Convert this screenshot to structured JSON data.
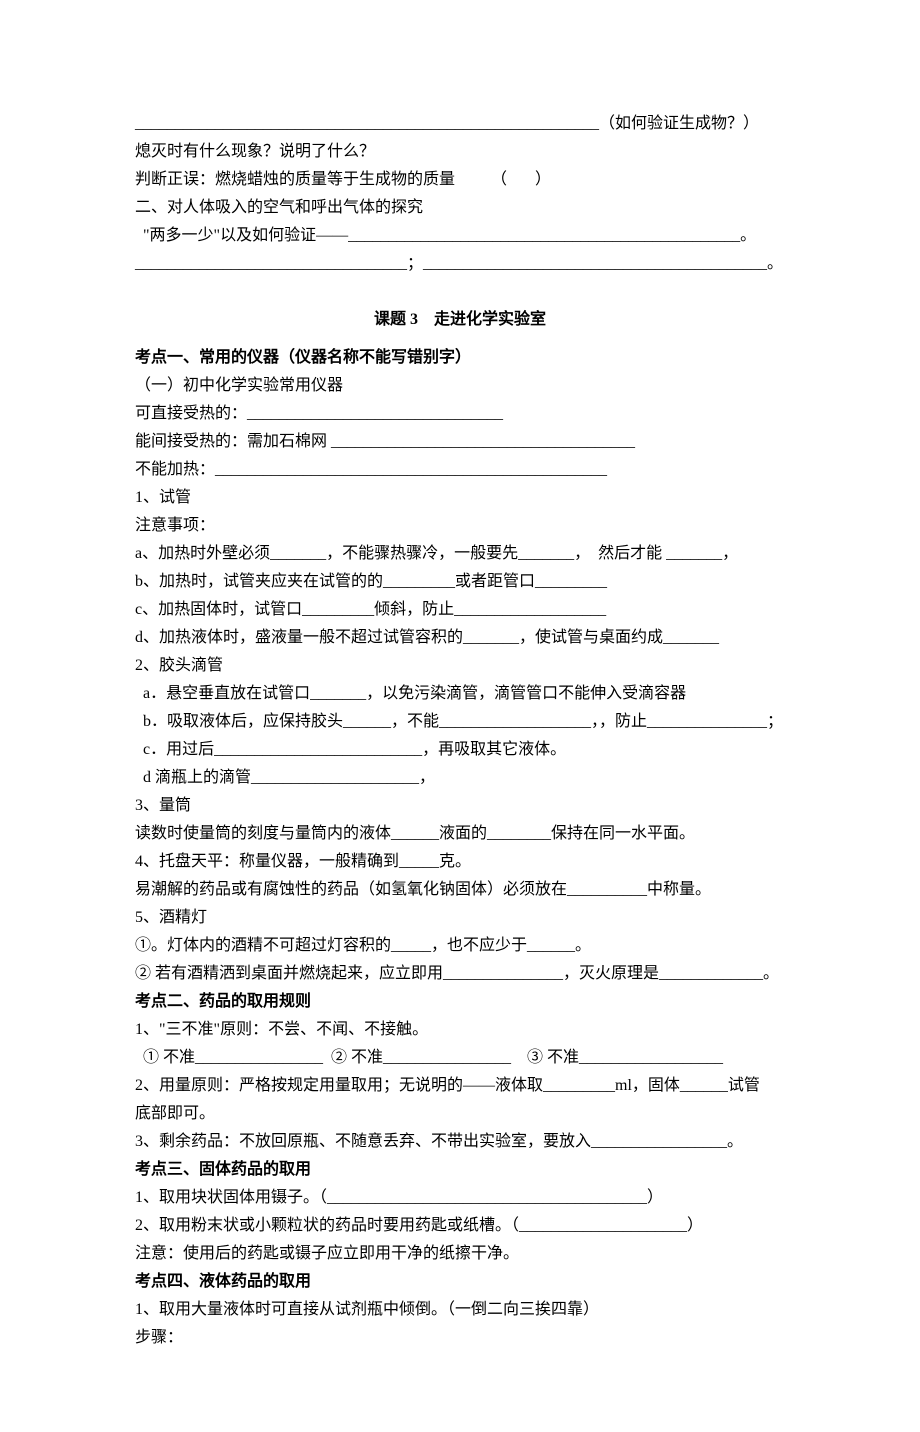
{
  "top": {
    "blank_tail": "__________________________________________________________（如何验证生成物？）",
    "q_extinguish": "熄灭时有什么现象？说明了什么？",
    "q_judge": "判断正误：燃烧蜡烛的质量等于生成物的质量         （       ）",
    "sec2_title": "二、对人体吸入的空气和呼出气体的探究",
    "two_more": "  \"两多一少\"以及如何验证——_________________________________________________。",
    "blank_pair": "__________________________________；___________________________________________。"
  },
  "title3": "课题 3    走进化学实验室",
  "kp1": {
    "heading": "考点一、常用的仪器（仪器名称不能写错别字）",
    "sub1": "（一）初中化学实验常用仪器",
    "direct_heat": "可直接受热的：________________________________",
    "indirect_heat": "能间接受热的：需加石棉网 ______________________________________",
    "no_heat": "不能加热：_________________________________________________",
    "tube_title": "1、试管",
    "note_title": "注意事项：",
    "a": "a、加热时外壁必须_______，不能骤热骤冷，一般要先_______，  然后才能 _______，",
    "b": "b、加热时，试管夹应夹在试管的的_________或者距管口_________",
    "c": "c、加热固体时，试管口_________倾斜，防止___________________",
    "d": "d、加热液体时，盛液量一般不超过试管容积的_______，使试管与桌面约成_______",
    "dropper_title": "2、胶头滴管",
    "da": "  a．悬空垂直放在试管口_______，以免污染滴管，滴管管口不能伸入受滴容器",
    "db": "  b．吸取液体后，应保持胶头______，不能___________________，，防止_______________；",
    "dc": "  c．用过后__________________________，再吸取其它液体。",
    "dd": "  d 滴瓶上的滴管_____________________，",
    "cyl_title": "3、量筒",
    "cyl_read": "读数时使量筒的刻度与量筒内的液体______液面的________保持在同一水平面。",
    "balance": "4、托盘天平：称量仪器，一般精确到_____克。",
    "balance2": "易潮解的药品或有腐蚀性的药品（如氢氧化钠固体）必须放在__________中称量。",
    "lamp_title": "5、酒精灯",
    "lamp1": "①。灯体内的酒精不可超过灯容积的_____，也不应少于______。",
    "lamp2": "② 若有酒精洒到桌面并燃烧起来，应立即用_______________，灭火原理是_____________。"
  },
  "kp2": {
    "heading": "考点二、药品的取用规则",
    "rule1": "1、\"三不准\"原则：不尝、不闻、不接触。",
    "rule1_fill": "  ① 不准________________  ② 不准________________    ③ 不准__________________",
    "rule2": "2、用量原则：严格按规定用量取用；无说明的——液体取_________ml，固体______试管",
    "rule2b": "底部即可。",
    "rule3": "3、剩余药品：不放回原瓶、不随意丢弃、不带出实验室，要放入_________________。"
  },
  "kp3": {
    "heading": "考点三、固体药品的取用",
    "l1": "1、取用块状固体用镊子。（________________________________________）",
    "l2": "2、取用粉末状或小颗粒状的药品时要用药匙或纸槽。（_____________________）",
    "note": "注意：使用后的药匙或镊子应立即用干净的纸擦干净。"
  },
  "kp4": {
    "heading": "考点四、液体药品的取用",
    "l1": "1、取用大量液体时可直接从试剂瓶中倾倒。（一倒二向三挨四靠）",
    "steps": "步骤："
  }
}
